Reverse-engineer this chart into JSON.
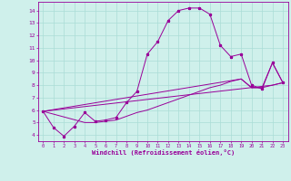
{
  "xlabel": "Windchill (Refroidissement éolien,°C)",
  "background_color": "#cff0eb",
  "grid_color": "#aaddd6",
  "line_color": "#990099",
  "xlim": [
    -0.5,
    23.5
  ],
  "ylim": [
    3.5,
    14.7
  ],
  "xticks": [
    0,
    1,
    2,
    3,
    4,
    5,
    6,
    7,
    8,
    9,
    10,
    11,
    12,
    13,
    14,
    15,
    16,
    17,
    18,
    19,
    20,
    21,
    22,
    23
  ],
  "yticks": [
    4,
    5,
    6,
    7,
    8,
    9,
    10,
    11,
    12,
    13,
    14
  ],
  "series1_x": [
    0,
    1,
    2,
    3,
    4,
    5,
    6,
    7,
    8,
    9,
    10,
    11,
    12,
    13,
    14,
    15,
    16,
    17,
    18,
    19,
    20,
    21,
    22,
    23
  ],
  "series1_y": [
    5.9,
    4.6,
    3.9,
    4.7,
    5.8,
    5.1,
    5.2,
    5.4,
    6.6,
    7.5,
    10.5,
    11.5,
    13.2,
    14.0,
    14.2,
    14.2,
    13.7,
    11.2,
    10.3,
    10.5,
    8.0,
    7.7,
    9.8,
    8.2
  ],
  "series2_x": [
    0,
    22,
    23
  ],
  "series2_y": [
    5.9,
    8.0,
    8.2
  ],
  "series3_x": [
    0,
    19,
    20,
    21,
    22,
    23
  ],
  "series3_y": [
    5.9,
    8.5,
    7.8,
    7.8,
    9.8,
    8.2
  ],
  "series4_x": [
    0,
    4,
    5,
    6,
    7,
    8,
    9,
    10,
    11,
    12,
    13,
    14,
    15,
    16,
    17,
    18,
    19,
    20,
    21,
    22,
    23
  ],
  "series4_y": [
    5.9,
    5.0,
    5.0,
    5.1,
    5.2,
    5.5,
    5.8,
    6.0,
    6.3,
    6.6,
    6.9,
    7.2,
    7.5,
    7.8,
    8.0,
    8.3,
    8.5,
    7.8,
    7.8,
    8.0,
    8.2
  ]
}
